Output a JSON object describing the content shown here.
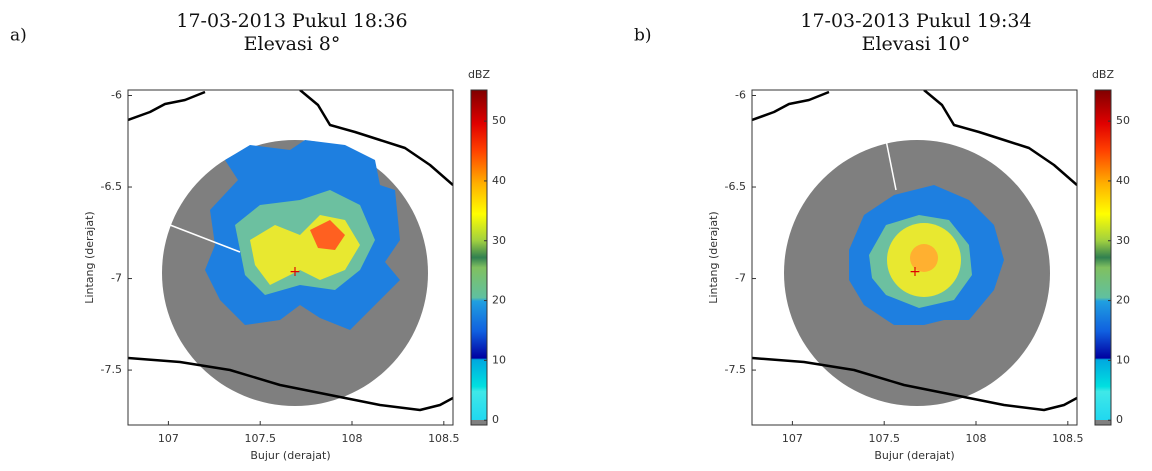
{
  "chart_data": [
    {
      "type": "radar-map",
      "panel_label": "a)",
      "title": "17-03-2013 Pukul 18:36",
      "subtitle": "Elevasi 8°",
      "xlabel": "Bujur (derajat)",
      "ylabel": "Lintang (derajat)",
      "xlim": [
        106.78,
        108.55
      ],
      "ylim": [
        -7.8,
        -5.97
      ],
      "xticks": [
        107,
        107.5,
        108,
        108.5
      ],
      "yticks": [
        -6,
        -6.5,
        -7,
        -7.5
      ],
      "colorbar": {
        "label": "dBZ",
        "lim": [
          -0.8,
          55.2
        ],
        "ticks": [
          0,
          10,
          20,
          30,
          40,
          50
        ]
      }
    },
    {
      "type": "radar-map",
      "panel_label": "b)",
      "title": "17-03-2013 Pukul 19:34",
      "subtitle": "Elevasi 10°",
      "xlabel": "Bujur (derajat)",
      "ylabel": "Lintang (derajat)",
      "xlim": [
        106.78,
        108.55
      ],
      "ylim": [
        -7.8,
        -5.97
      ],
      "xticks": [
        107,
        107.5,
        108,
        108.5
      ],
      "yticks": [
        -6,
        -6.5,
        -7,
        -7.5
      ],
      "colorbar": {
        "label": "dBZ",
        "lim": [
          -0.8,
          55.2
        ],
        "ticks": [
          0,
          10,
          20,
          30,
          40,
          50
        ]
      }
    }
  ]
}
